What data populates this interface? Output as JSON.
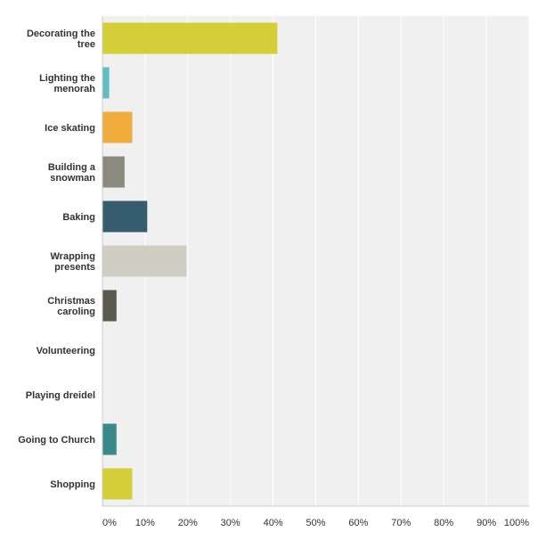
{
  "chart_data": {
    "type": "bar",
    "orientation": "horizontal",
    "categories": [
      [
        "Decorating the",
        "tree"
      ],
      [
        "Lighting the",
        "menorah"
      ],
      [
        "Ice skating"
      ],
      [
        "Building a",
        "snowman"
      ],
      [
        "Baking"
      ],
      [
        "Wrapping",
        "presents"
      ],
      [
        "Christmas",
        "caroling"
      ],
      [
        "Volunteering"
      ],
      [
        "Playing dreidel"
      ],
      [
        "Going to Church"
      ],
      [
        "Shopping"
      ]
    ],
    "values": [
      41.0,
      1.6,
      7.0,
      5.2,
      10.5,
      19.7,
      3.3,
      0,
      0,
      3.3,
      7.0
    ],
    "colors": [
      "#d4cf38",
      "#63bdc2",
      "#f0ad3b",
      "#8b8b7d",
      "#355d6f",
      "#d0cdc3",
      "#5a5a4d",
      "#4a7a7a",
      "#4a4a4a",
      "#3a8a8a",
      "#d4cf38"
    ],
    "xlim": [
      0,
      100
    ],
    "xticks": [
      "0%",
      "10%",
      "20%",
      "30%",
      "40%",
      "50%",
      "60%",
      "70%",
      "80%",
      "90%",
      "100%"
    ],
    "grid": true,
    "background": "#f0f0f0",
    "gridline_color": "#ffffff",
    "title": "",
    "xlabel": "",
    "ylabel": ""
  }
}
